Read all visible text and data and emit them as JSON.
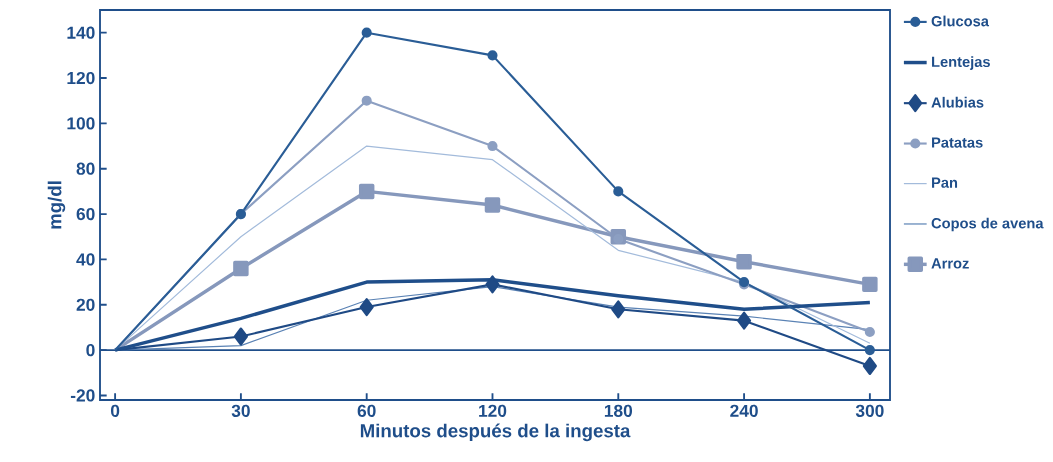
{
  "chart_data": {
    "type": "line",
    "xlabel": "Minutos después de la ingesta",
    "ylabel": "mg/dl",
    "categories": [
      "0",
      "30",
      "60",
      "120",
      "180",
      "240",
      "300"
    ],
    "ylim": [
      -22,
      150
    ],
    "yticks": [
      -20,
      0,
      20,
      40,
      60,
      80,
      100,
      120,
      140
    ],
    "legend": "right",
    "grid": false,
    "ref_lines": [
      {
        "axis": "y",
        "value": 0,
        "color": "#1f4e8a"
      }
    ],
    "series": [
      {
        "name": "Glucosa",
        "color": "#2a5d96",
        "marker": "circle",
        "values": [
          0,
          60,
          140,
          130,
          70,
          30,
          0
        ]
      },
      {
        "name": "Lentejas",
        "color": "#1f4e8a",
        "marker": "none",
        "values": [
          0,
          14,
          30,
          31,
          24,
          18,
          21
        ]
      },
      {
        "name": "Alubias",
        "color": "#1f4a85",
        "marker": "diamond",
        "values": [
          0,
          6,
          19,
          29,
          18,
          13,
          -7
        ]
      },
      {
        "name": "Patatas",
        "color": "#8c9fc2",
        "marker": "circle",
        "values": [
          0,
          60,
          110,
          90,
          49,
          29,
          8
        ]
      },
      {
        "name": "Pan",
        "color": "#a3bbdb",
        "marker": "none",
        "values": [
          0,
          50,
          90,
          84,
          44,
          30,
          3
        ]
      },
      {
        "name": "Copos de avena",
        "color": "#5a82b4",
        "marker": "none",
        "values": [
          0,
          2,
          22,
          28,
          19,
          15,
          9
        ]
      },
      {
        "name": "Arroz",
        "color": "#8698bc",
        "marker": "square",
        "values": [
          0,
          36,
          70,
          64,
          50,
          39,
          29
        ]
      }
    ]
  }
}
